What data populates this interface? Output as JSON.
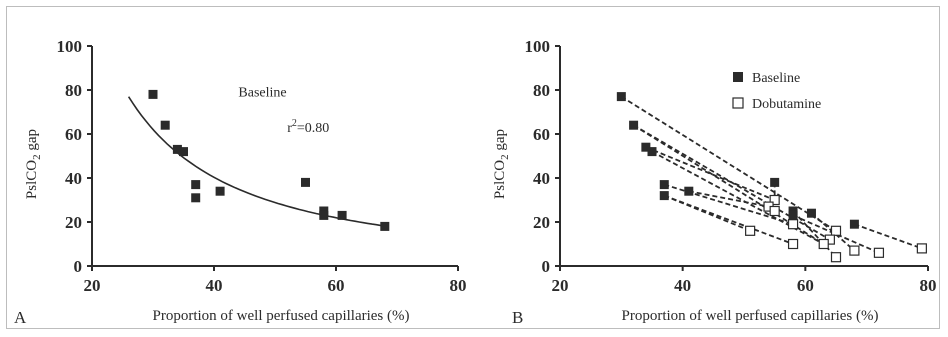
{
  "chart_data": [
    {
      "type": "scatter",
      "panel_label": "A",
      "xlabel": "Proportion of well perfused capillaries (%)",
      "ylabel_main": "PslCO",
      "ylabel_sub": "2",
      "ylabel_tail": " gap",
      "xlim": [
        20,
        80
      ],
      "ylim": [
        0,
        100
      ],
      "xticks": [
        20,
        40,
        60,
        80
      ],
      "yticks": [
        0,
        20,
        40,
        60,
        80,
        100
      ],
      "grid": false,
      "annotations": [
        {
          "text": "Baseline",
          "x": 44,
          "y": 77
        },
        {
          "text_main": "r",
          "text_sup": "2",
          "text_tail": "=0.80",
          "x": 52,
          "y": 61
        }
      ],
      "series": [
        {
          "marker": "filled-square",
          "points": [
            [
              30,
              78
            ],
            [
              32,
              64
            ],
            [
              34,
              53
            ],
            [
              35,
              52
            ],
            [
              37,
              37
            ],
            [
              37,
              31
            ],
            [
              41,
              34
            ],
            [
              55,
              38
            ],
            [
              58,
              25
            ],
            [
              58,
              23
            ],
            [
              61,
              23
            ],
            [
              68,
              18
            ]
          ]
        }
      ],
      "fit_curve": {
        "type": "power",
        "coef": 10200,
        "exponent": -1.5,
        "x_range": [
          26,
          68
        ]
      }
    },
    {
      "type": "scatter",
      "panel_label": "B",
      "xlabel": "Proportion of well perfused capillaries (%)",
      "ylabel_main": "PslCO",
      "ylabel_sub": "2",
      "ylabel_tail": " gap",
      "xlim": [
        20,
        80
      ],
      "ylim": [
        0,
        100
      ],
      "xticks": [
        20,
        40,
        60,
        80
      ],
      "yticks": [
        0,
        20,
        40,
        60,
        80,
        100
      ],
      "grid": false,
      "legend": {
        "placement": "top",
        "entries": [
          {
            "label": "Baseline",
            "marker": "filled-square"
          },
          {
            "label": "Dobutamine",
            "marker": "open-square"
          }
        ]
      },
      "series": [
        {
          "name": "Baseline",
          "marker": "filled-square",
          "points": [
            [
              30,
              77
            ],
            [
              32,
              64
            ],
            [
              34,
              54
            ],
            [
              35,
              52
            ],
            [
              37,
              37
            ],
            [
              37,
              32
            ],
            [
              41,
              34
            ],
            [
              55,
              38
            ],
            [
              58,
              25
            ],
            [
              58,
              23
            ],
            [
              61,
              24
            ],
            [
              68,
              19
            ]
          ]
        },
        {
          "name": "Dobutamine",
          "marker": "open-square",
          "points": [
            [
              65,
              16
            ],
            [
              64,
              12
            ],
            [
              55,
              30
            ],
            [
              63,
              10
            ],
            [
              58,
              19
            ],
            [
              54,
              27
            ],
            [
              51,
              16
            ],
            [
              58,
              10
            ],
            [
              55,
              25
            ],
            [
              65,
              4
            ],
            [
              72,
              6
            ],
            [
              79,
              8
            ],
            [
              68,
              7
            ]
          ]
        }
      ],
      "pairs": [
        [
          0,
          0
        ],
        [
          1,
          1
        ],
        [
          2,
          2
        ],
        [
          3,
          3
        ],
        [
          4,
          4
        ],
        [
          5,
          6
        ],
        [
          6,
          5
        ],
        [
          7,
          8
        ],
        [
          8,
          9
        ],
        [
          9,
          10
        ],
        [
          10,
          12
        ],
        [
          11,
          11
        ],
        [
          1,
          3
        ],
        [
          5,
          7
        ]
      ]
    }
  ]
}
